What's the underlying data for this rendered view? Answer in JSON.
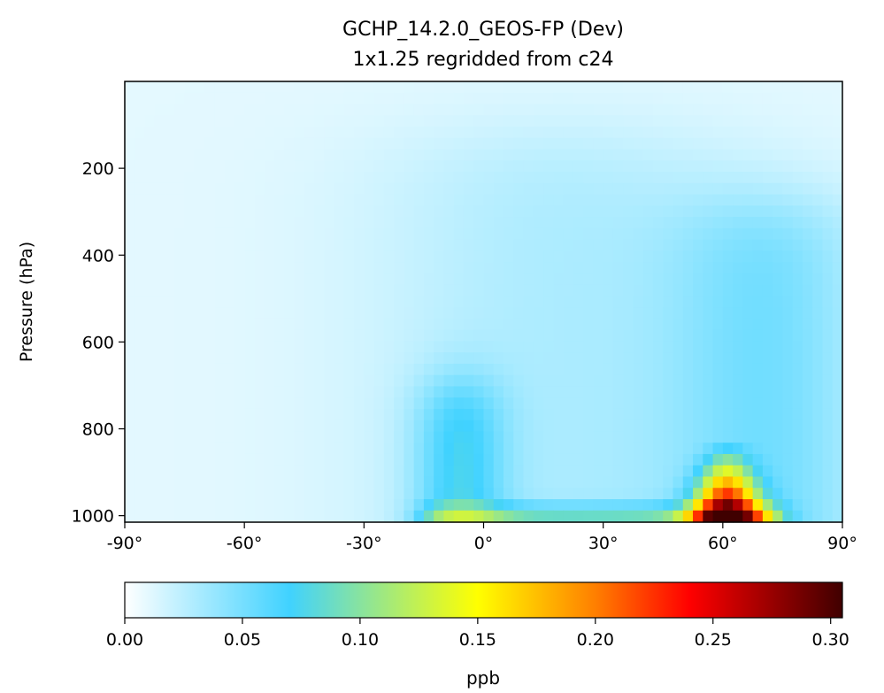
{
  "chart_data": {
    "type": "heatmap",
    "title": "GCHP_14.2.0_GEOS-FP (Dev)",
    "subtitle": "1x1.25 regridded from c24",
    "xlabel": "",
    "ylabel": "Pressure (hPa)",
    "xlim": [
      -90,
      90
    ],
    "ylim": [
      1015,
      0
    ],
    "x_scale": "linear",
    "y_scale": "linear",
    "x_ticks": [
      -90,
      -60,
      -30,
      0,
      30,
      60,
      90
    ],
    "x_tick_labels": [
      "-90°",
      "-60°",
      "-30°",
      "0°",
      "30°",
      "60°",
      "90°"
    ],
    "y_ticks": [
      200,
      400,
      600,
      800,
      1000
    ],
    "y_tick_labels": [
      "200",
      "400",
      "600",
      "800",
      "1000"
    ],
    "grid": false,
    "colormap": "WhGrYlRd",
    "colormap_stops": [
      {
        "v": 0.0,
        "color": "#ffffff"
      },
      {
        "v": 0.07,
        "color": "#40d2ff"
      },
      {
        "v": 0.15,
        "color": "#ffff00"
      },
      {
        "v": 0.2,
        "color": "#ff7f00"
      },
      {
        "v": 0.24,
        "color": "#ff0000"
      },
      {
        "v": 0.305,
        "color": "#400000"
      }
    ],
    "colorbar": {
      "label": "ppb",
      "min": 0.0,
      "max": 0.305,
      "ticks": [
        0.0,
        0.05,
        0.1,
        0.15,
        0.2,
        0.25,
        0.3
      ],
      "tick_labels": [
        "0.00",
        "0.05",
        "0.10",
        "0.15",
        "0.20",
        "0.25",
        "0.30"
      ],
      "placement": "bottom"
    },
    "field_features": [
      {
        "name": "background",
        "value": 0.01
      },
      {
        "name": "tropical upper plume",
        "lat_center": 20,
        "lat_width": 35,
        "pressure_top": 120,
        "value": 0.02
      },
      {
        "name": "northern mid-lat column",
        "lat_center": 72,
        "lat_width": 18,
        "pressure_top": 280,
        "value": 0.035
      },
      {
        "name": "tropical low-level column",
        "lat_center": -6,
        "lat_width": 8,
        "pressure_top": 700,
        "value": 0.05
      },
      {
        "name": "near-surface layer",
        "lat_range": [
          -15,
          75
        ],
        "pressure_top": 980,
        "value": 0.06
      },
      {
        "name": "high-latitude surface maximum",
        "lat_center": 61,
        "lat_width": 6,
        "pressure_top": 820,
        "value": 0.305
      }
    ]
  }
}
